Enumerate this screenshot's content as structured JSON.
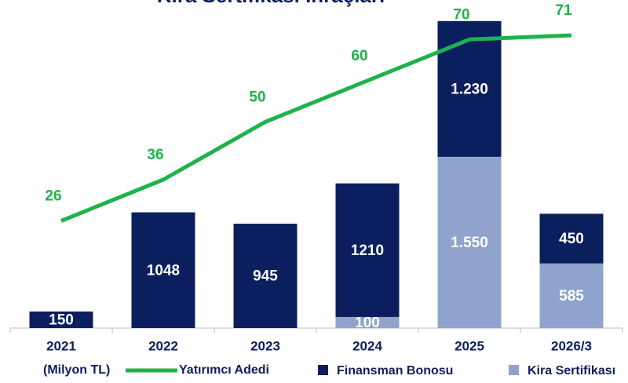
{
  "chart_data": {
    "type": "bar",
    "title": "Kira Sertifikası İhraçları",
    "unit_label": "(Milyon TL)",
    "categories": [
      "2021",
      "2022",
      "2023",
      "2024",
      "2025",
      "2026/3"
    ],
    "stacked": true,
    "series": [
      {
        "name": "Kira Sertifikası",
        "color": "#8fa3cc",
        "values": [
          null,
          null,
          null,
          100,
          1550,
          585
        ],
        "value_labels": [
          null,
          null,
          null,
          "100",
          "1.550",
          "585"
        ]
      },
      {
        "name": "Finansman Bonosu",
        "color": "#0b1f5e",
        "values": [
          150,
          1048,
          945,
          1210,
          1230,
          450
        ],
        "value_labels": [
          "150",
          "1048",
          "945",
          "1210",
          "1.230",
          "450"
        ]
      },
      {
        "name": "Yatırımcı Adedi",
        "type": "line",
        "axis": "y2",
        "color": "#1db34a",
        "values": [
          26,
          36,
          50,
          60,
          70,
          71
        ]
      }
    ],
    "ylim": [
      0,
      2800
    ],
    "y2lim": [
      0,
      75
    ]
  }
}
